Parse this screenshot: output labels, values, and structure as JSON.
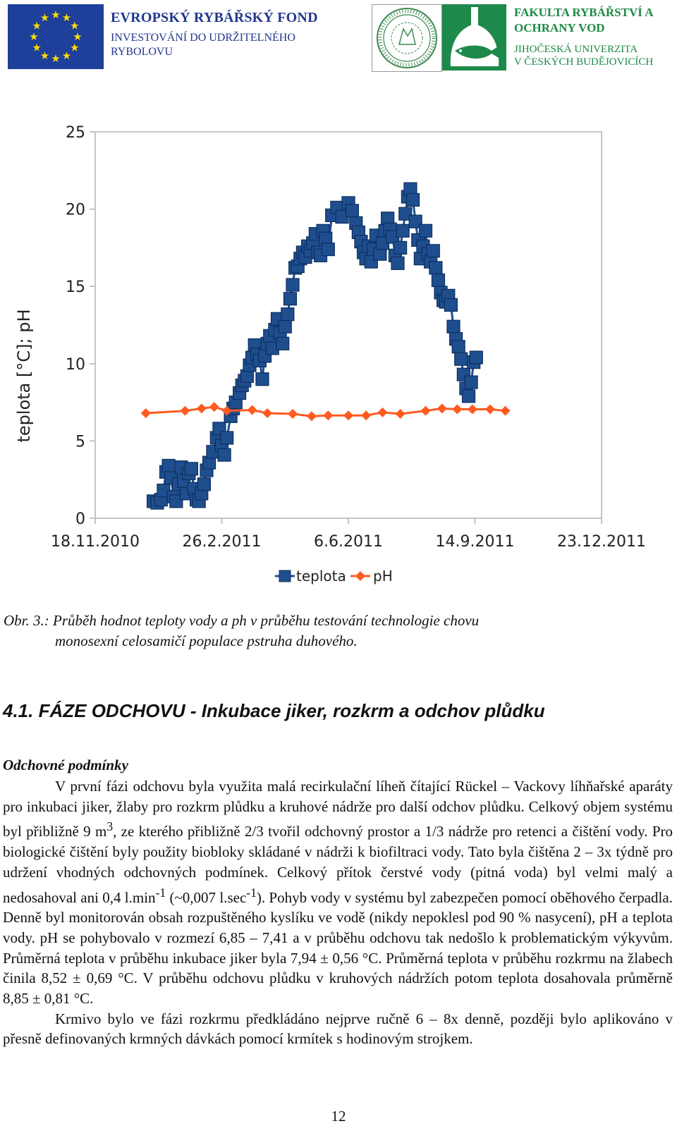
{
  "header": {
    "eu_fund_title": "EVROPSKÝ RYBÁŘSKÝ FOND",
    "eu_fund_line1": "INVESTOVÁNÍ DO UDRŽITELNÉHO",
    "eu_fund_line2": "RYBOLOVU",
    "faculty_line1": "FAKULTA RYBÁŘSTVÍ A",
    "faculty_line2": "OCHRANY VOD",
    "university_line1": "JIHOČESKÁ UNIVERZITA",
    "university_line2": "V ČESKÝCH BUDĚJOVICÍCH",
    "eu_flag_icon": "eu-flag-icon",
    "seal_icon": "university-seal-icon",
    "fish_icon": "fish-logo-icon",
    "colors": {
      "eu_blue": "#1e3f9a",
      "eu_star": "#ffdd00",
      "faculty_green": "#1b8a44"
    }
  },
  "chart_data": {
    "type": "line",
    "title": "",
    "xlabel": "",
    "ylabel": "teplota [°C]; pH",
    "x_type": "date",
    "x_ticks": [
      "18.11.2010",
      "26.2.2011",
      "6.6.2011",
      "14.9.2011",
      "23.12.2011"
    ],
    "xlim": [
      "2010-11-18",
      "2011-12-23"
    ],
    "ylim": [
      0,
      25
    ],
    "y_ticks": [
      0,
      5,
      10,
      15,
      20,
      25
    ],
    "grid": false,
    "legend_position": "bottom",
    "series": [
      {
        "name": "teplota",
        "color": "#1f4e8f",
        "marker": "square",
        "points": [
          [
            "2011-01-03",
            1.1
          ],
          [
            "2011-01-06",
            1.0
          ],
          [
            "2011-01-09",
            1.2
          ],
          [
            "2011-01-11",
            1.8
          ],
          [
            "2011-01-13",
            3.0
          ],
          [
            "2011-01-15",
            3.4
          ],
          [
            "2011-01-17",
            2.6
          ],
          [
            "2011-01-19",
            1.4
          ],
          [
            "2011-01-21",
            1.1
          ],
          [
            "2011-01-23",
            2.2
          ],
          [
            "2011-01-25",
            3.3
          ],
          [
            "2011-01-27",
            2.4
          ],
          [
            "2011-01-29",
            1.6
          ],
          [
            "2011-01-31",
            2.9
          ],
          [
            "2011-02-02",
            3.2
          ],
          [
            "2011-02-04",
            1.9
          ],
          [
            "2011-02-06",
            1.2
          ],
          [
            "2011-02-08",
            1.1
          ],
          [
            "2011-02-10",
            1.6
          ],
          [
            "2011-02-12",
            2.2
          ],
          [
            "2011-02-14",
            3.1
          ],
          [
            "2011-02-16",
            3.6
          ],
          [
            "2011-02-19",
            4.3
          ],
          [
            "2011-02-22",
            5.2
          ],
          [
            "2011-02-24",
            5.8
          ],
          [
            "2011-02-26",
            4.7
          ],
          [
            "2011-02-28",
            4.1
          ],
          [
            "2011-03-02",
            5.2
          ],
          [
            "2011-03-05",
            6.6
          ],
          [
            "2011-03-07",
            7.1
          ],
          [
            "2011-03-09",
            7.5
          ],
          [
            "2011-03-12",
            8.1
          ],
          [
            "2011-03-14",
            8.6
          ],
          [
            "2011-03-16",
            8.9
          ],
          [
            "2011-03-18",
            9.2
          ],
          [
            "2011-03-20",
            9.9
          ],
          [
            "2011-03-22",
            10.4
          ],
          [
            "2011-03-24",
            11.2
          ],
          [
            "2011-03-26",
            10.6
          ],
          [
            "2011-03-28",
            10.2
          ],
          [
            "2011-03-30",
            9.0
          ],
          [
            "2011-04-01",
            10.5
          ],
          [
            "2011-04-03",
            11.3
          ],
          [
            "2011-04-05",
            11.8
          ],
          [
            "2011-04-07",
            11.0
          ],
          [
            "2011-04-09",
            12.2
          ],
          [
            "2011-04-11",
            12.9
          ],
          [
            "2011-04-13",
            12.0
          ],
          [
            "2011-04-15",
            11.3
          ],
          [
            "2011-04-17",
            12.4
          ],
          [
            "2011-04-19",
            13.2
          ],
          [
            "2011-04-21",
            14.2
          ],
          [
            "2011-04-23",
            15.1
          ],
          [
            "2011-04-25",
            16.2
          ],
          [
            "2011-04-27",
            16.3
          ],
          [
            "2011-04-29",
            16.8
          ],
          [
            "2011-05-01",
            17.2
          ],
          [
            "2011-05-03",
            16.9
          ],
          [
            "2011-05-05",
            17.6
          ],
          [
            "2011-05-07",
            17.3
          ],
          [
            "2011-05-09",
            17.8
          ],
          [
            "2011-05-11",
            18.4
          ],
          [
            "2011-05-13",
            17.2
          ],
          [
            "2011-05-15",
            17.0
          ],
          [
            "2011-05-17",
            18.6
          ],
          [
            "2011-05-19",
            18.1
          ],
          [
            "2011-05-21",
            17.4
          ],
          [
            "2011-05-24",
            19.6
          ],
          [
            "2011-05-28",
            20.1
          ],
          [
            "2011-06-01",
            19.5
          ],
          [
            "2011-06-06",
            20.4
          ],
          [
            "2011-06-09",
            19.9
          ],
          [
            "2011-06-12",
            19.1
          ],
          [
            "2011-06-14",
            18.5
          ],
          [
            "2011-06-16",
            17.9
          ],
          [
            "2011-06-18",
            17.2
          ],
          [
            "2011-06-20",
            16.8
          ],
          [
            "2011-06-22",
            17.6
          ],
          [
            "2011-06-24",
            16.6
          ],
          [
            "2011-06-26",
            17.4
          ],
          [
            "2011-06-28",
            18.3
          ],
          [
            "2011-07-01",
            17.1
          ],
          [
            "2011-07-03",
            17.8
          ],
          [
            "2011-07-05",
            18.6
          ],
          [
            "2011-07-07",
            19.4
          ],
          [
            "2011-07-09",
            18.7
          ],
          [
            "2011-07-11",
            18.2
          ],
          [
            "2011-07-13",
            17.0
          ],
          [
            "2011-07-15",
            16.5
          ],
          [
            "2011-07-17",
            17.5
          ],
          [
            "2011-07-19",
            18.6
          ],
          [
            "2011-07-21",
            19.7
          ],
          [
            "2011-07-23",
            20.8
          ],
          [
            "2011-07-25",
            21.3
          ],
          [
            "2011-07-27",
            20.6
          ],
          [
            "2011-07-29",
            19.2
          ],
          [
            "2011-07-31",
            18.0
          ],
          [
            "2011-08-02",
            16.8
          ],
          [
            "2011-08-04",
            17.6
          ],
          [
            "2011-08-06",
            18.6
          ],
          [
            "2011-08-08",
            17.1
          ],
          [
            "2011-08-10",
            16.6
          ],
          [
            "2011-08-12",
            17.3
          ],
          [
            "2011-08-14",
            16.2
          ],
          [
            "2011-08-16",
            15.4
          ],
          [
            "2011-08-18",
            14.6
          ],
          [
            "2011-08-20",
            14.1
          ],
          [
            "2011-08-22",
            14.0
          ],
          [
            "2011-08-24",
            14.4
          ],
          [
            "2011-08-26",
            13.8
          ],
          [
            "2011-08-28",
            12.4
          ],
          [
            "2011-08-30",
            11.6
          ],
          [
            "2011-09-01",
            11.1
          ],
          [
            "2011-09-03",
            10.3
          ],
          [
            "2011-09-05",
            9.3
          ],
          [
            "2011-09-07",
            8.4
          ],
          [
            "2011-09-09",
            7.9
          ],
          [
            "2011-09-11",
            8.8
          ],
          [
            "2011-09-13",
            10.1
          ],
          [
            "2011-09-15",
            10.4
          ]
        ]
      },
      {
        "name": "pH",
        "color": "#ff5a1f",
        "marker": "diamond",
        "points": [
          [
            "2010-12-28",
            6.8
          ],
          [
            "2011-01-28",
            6.95
          ],
          [
            "2011-02-10",
            7.1
          ],
          [
            "2011-02-20",
            7.2
          ],
          [
            "2011-03-02",
            6.95
          ],
          [
            "2011-03-22",
            7.0
          ],
          [
            "2011-04-03",
            6.8
          ],
          [
            "2011-04-23",
            6.75
          ],
          [
            "2011-05-08",
            6.6
          ],
          [
            "2011-05-21",
            6.65
          ],
          [
            "2011-06-06",
            6.65
          ],
          [
            "2011-06-20",
            6.65
          ],
          [
            "2011-07-03",
            6.85
          ],
          [
            "2011-07-17",
            6.75
          ],
          [
            "2011-08-06",
            6.95
          ],
          [
            "2011-08-19",
            7.1
          ],
          [
            "2011-08-31",
            7.05
          ],
          [
            "2011-09-12",
            7.05
          ],
          [
            "2011-09-26",
            7.05
          ],
          [
            "2011-10-08",
            6.95
          ]
        ]
      }
    ]
  },
  "caption": {
    "line1": "Obr.  3.: Průběh  hodnot  teploty  vody  a  ph  v  průběhu  testování  technologie  chovu",
    "line2": "monosexní celosamičí populace pstruha duhového."
  },
  "section_heading": "4.1. FÁZE ODCHOVU - Inkubace jiker, rozkrm a odchov plůdku",
  "sub_heading": "Odchovné podmínky",
  "paragraph1": {
    "part1": "V první fázi odchovu byla využita malá recirkulační líheň čítající Rückel – Vackovy líhňařské aparáty pro inkubaci jiker, žlaby pro rozkrm plůdku a kruhové nádrže pro další odchov plůdku. Celkový objem systému byl přibližně 9 m",
    "sup1": "3",
    "part2": ", ze kterého přibližně 2/3 tvořil odchovný prostor a 1/3 nádrže pro retenci a čištění vody. Pro biologické čištění byly použity biobloky skládané v nádrži k biofiltraci vody. Tato byla čištěna 2 – 3x týdně pro udržení vhodných odchovných podmínek. Celkový přítok čerstvé vody (pitná voda) byl velmi malý a nedosahoval ani 0,4 l.min",
    "sup2": "-1",
    "part3": " (~0,007 l.sec",
    "sup3": "-1",
    "part4": "). Pohyb vody v systému byl zabezpečen pomocí oběhového čerpadla. Denně byl monitorován obsah rozpuštěného kyslíku ve vodě (nikdy nepoklesl pod 90 % nasycení), pH a teplota vody. pH se pohybovalo v rozmezí 6,85 – 7,41 a v průběhu odchovu tak nedošlo k problematickým výkyvům. Průměrná teplota v průběhu inkubace jiker byla 7,94 ± 0,56 °C. Průměrná teplota v průběhu rozkrmu na žlabech činila 8,52 ± 0,69 °C. V průběhu odchovu plůdku v kruhových nádržích potom teplota dosahovala průměrně 8,85 ± 0,81 °C."
  },
  "paragraph2": "Krmivo bylo ve fázi rozkrmu předkládáno nejprve ručně 6 – 8x denně, později bylo aplikováno v přesně definovaných krmných dávkách pomocí krmítek s hodinovým strojkem.",
  "page_number": "12"
}
